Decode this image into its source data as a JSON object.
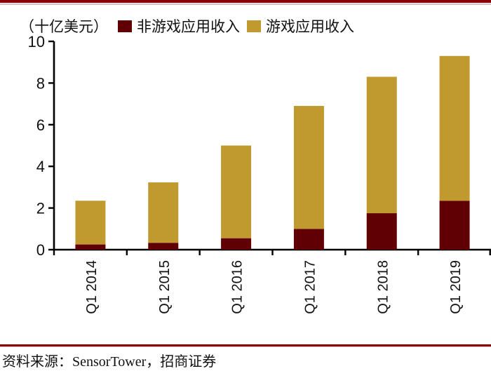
{
  "page": {
    "accent_rule_color": "#8B0000",
    "accent_rule_light_color": "#E6BEBE",
    "background": "#ffffff"
  },
  "header": {
    "unit_label": "（十亿美元）"
  },
  "chart_data": {
    "type": "bar",
    "stacked": true,
    "title": "",
    "xlabel": "",
    "ylabel": "（十亿美元）",
    "categories": [
      "Q1 2014",
      "Q1 2015",
      "Q1 2016",
      "Q1 2017",
      "Q1 2018",
      "Q1 2019"
    ],
    "series": [
      {
        "name": "非游戏应用收入",
        "color": "#600004",
        "values": [
          0.25,
          0.33,
          0.55,
          1.0,
          1.75,
          2.35
        ]
      },
      {
        "name": "游戏应用收入",
        "color": "#C0992F",
        "values": [
          2.1,
          2.9,
          4.45,
          5.9,
          6.55,
          6.95
        ]
      }
    ],
    "totals": [
      2.35,
      3.23,
      5.0,
      6.9,
      8.3,
      9.3
    ],
    "ylim": [
      0,
      10
    ],
    "yticks": [
      0,
      2,
      4,
      6,
      8,
      10
    ],
    "grid": false,
    "legend_position": "top",
    "axis_color": "#000000",
    "tick_label_color": "#111111"
  },
  "footer": {
    "source": "资料来源：SensorTower，招商证券"
  }
}
